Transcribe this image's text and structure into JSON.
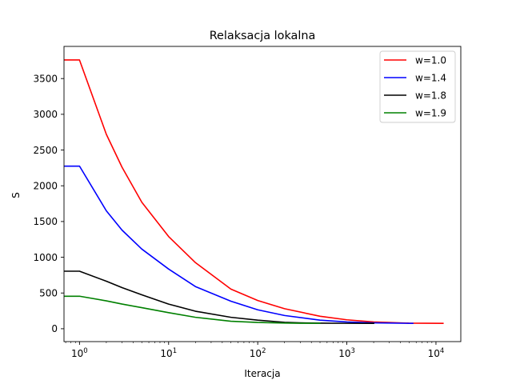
{
  "chart_data": {
    "type": "line",
    "title": "Relaksacja lokalna",
    "xlabel": "Iteracja",
    "ylabel": "S",
    "xscale": "log",
    "xlim": [
      0.67,
      19000
    ],
    "ylim": [
      -180,
      3950
    ],
    "xticks": [
      {
        "value": 1,
        "base": "10",
        "exp": "0"
      },
      {
        "value": 10,
        "base": "10",
        "exp": "1"
      },
      {
        "value": 100,
        "base": "10",
        "exp": "2"
      },
      {
        "value": 1000,
        "base": "10",
        "exp": "3"
      },
      {
        "value": 10000,
        "base": "10",
        "exp": "4"
      }
    ],
    "yticks": [
      0,
      500,
      1000,
      1500,
      2000,
      2500,
      3000,
      3500
    ],
    "legend_position": "top-right",
    "grid": false,
    "series": [
      {
        "name": "w=1.0",
        "color": "#ff0000",
        "x": [
          0.67,
          1,
          2,
          3,
          5,
          10,
          20,
          50,
          100,
          200,
          500,
          1000,
          2000,
          5000,
          12000
        ],
        "y": [
          3760,
          3760,
          2720,
          2260,
          1770,
          1290,
          925,
          555,
          395,
          280,
          175,
          125,
          95,
          78,
          75
        ]
      },
      {
        "name": "w=1.4",
        "color": "#0000ff",
        "x": [
          0.67,
          1,
          2,
          3,
          5,
          10,
          20,
          50,
          100,
          200,
          500,
          1000,
          2000,
          5500
        ],
        "y": [
          2275,
          2275,
          1650,
          1380,
          1115,
          835,
          590,
          385,
          265,
          185,
          120,
          95,
          82,
          75
        ]
      },
      {
        "name": "w=1.8",
        "color": "#000000",
        "x": [
          0.67,
          1,
          2,
          3,
          5,
          10,
          20,
          50,
          100,
          200,
          300,
          500,
          1000,
          2000
        ],
        "y": [
          805,
          805,
          665,
          575,
          475,
          345,
          245,
          160,
          120,
          90,
          82,
          78,
          76,
          75
        ]
      },
      {
        "name": "w=1.9",
        "color": "#008000",
        "x": [
          0.67,
          1,
          2,
          3,
          5,
          10,
          20,
          50,
          100,
          200,
          300,
          500
        ],
        "y": [
          455,
          455,
          390,
          345,
          295,
          225,
          160,
          105,
          88,
          80,
          77,
          76
        ]
      }
    ]
  }
}
